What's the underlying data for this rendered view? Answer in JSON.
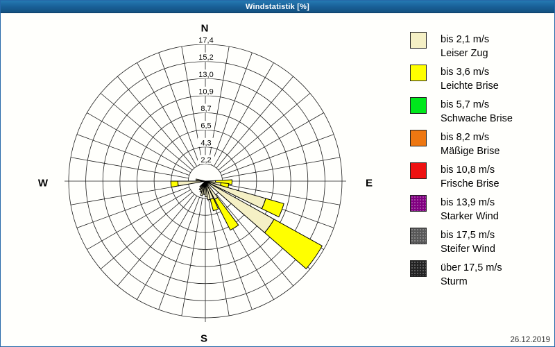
{
  "window": {
    "title": "Windstatistik [%]"
  },
  "footer": {
    "date": "26.12.2019"
  },
  "legend": {
    "items": [
      {
        "speed": "bis 2,1 m/s",
        "name": "Leiser Zug",
        "color": "#F5F0C5",
        "dotted": false
      },
      {
        "speed": "bis 3,6 m/s",
        "name": "Leichte Brise",
        "color": "#FFFF00",
        "dotted": false
      },
      {
        "speed": "bis 5,7 m/s",
        "name": "Schwache Brise",
        "color": "#00E81C",
        "dotted": false
      },
      {
        "speed": "bis 8,2 m/s",
        "name": "Mäßige Brise",
        "color": "#EE7711",
        "dotted": false
      },
      {
        "speed": "bis 10,8 m/s",
        "name": "Frische Brise",
        "color": "#EE1111",
        "dotted": false
      },
      {
        "speed": "bis 13,9 m/s",
        "name": "Starker Wind",
        "color": "#800080",
        "dotted": true
      },
      {
        "speed": "bis 17,5 m/s",
        "name": "Steifer Wind",
        "color": "#585858",
        "dotted": true
      },
      {
        "speed": "über 17,5 m/s",
        "name": "Sturm",
        "color": "#222222",
        "dotted": true
      }
    ]
  },
  "chart_data": {
    "type": "wind-rose",
    "title": "Windstatistik [%]",
    "units": "%",
    "rmax": 17.4,
    "ring_values": [
      2.2,
      4.3,
      6.5,
      8.7,
      10.9,
      13.0,
      15.2,
      17.4
    ],
    "ring_labels": [
      "2,2",
      "4,3",
      "6,5",
      "8,7",
      "10,9",
      "13,0",
      "15,2",
      "17,4"
    ],
    "grid": {
      "spoke_step_deg": 10,
      "rings": 8
    },
    "compass": {
      "n": "N",
      "e": "E",
      "s": "S",
      "w": "W"
    },
    "speed_class_note": "stack_pct = [% bis 2,1 m/s (Leiser Zug), % bis 3,6 m/s (Leichte Brise)]; higher classes are 0",
    "petals": [
      {
        "bearing": 92,
        "width": 10,
        "stack_pct": [
          1.3,
          2.1
        ]
      },
      {
        "bearing": 101,
        "width": 10,
        "stack_pct": [
          2.0,
          1.0
        ]
      },
      {
        "bearing": 111,
        "width": 10,
        "stack_pct": [
          8.0,
          2.4
        ]
      },
      {
        "bearing": 125,
        "width": 12,
        "stack_pct": [
          10.0,
          7.0
        ]
      },
      {
        "bearing": 148,
        "width": 10,
        "stack_pct": [
          2.6,
          4.4
        ]
      },
      {
        "bearing": 160,
        "width": 10,
        "stack_pct": [
          2.4,
          1.5
        ]
      },
      {
        "bearing": 169,
        "width": 8,
        "stack_pct": [
          2.4,
          0
        ]
      },
      {
        "bearing": 177,
        "width": 7,
        "stack_pct": [
          2.0,
          0
        ]
      },
      {
        "bearing": 186,
        "width": 7,
        "stack_pct": [
          1.7,
          0
        ]
      },
      {
        "bearing": 195,
        "width": 7,
        "stack_pct": [
          1.9,
          0
        ]
      },
      {
        "bearing": 204,
        "width": 7,
        "stack_pct": [
          1.5,
          0
        ]
      },
      {
        "bearing": 213,
        "width": 7,
        "stack_pct": [
          1.3,
          0
        ]
      },
      {
        "bearing": 222,
        "width": 7,
        "stack_pct": [
          1.0,
          0
        ]
      },
      {
        "bearing": 265,
        "width": 10,
        "stack_pct": [
          3.5,
          0.9
        ]
      },
      {
        "bearing": 279,
        "width": 8,
        "stack_pct": [
          1.2,
          0
        ]
      }
    ]
  }
}
